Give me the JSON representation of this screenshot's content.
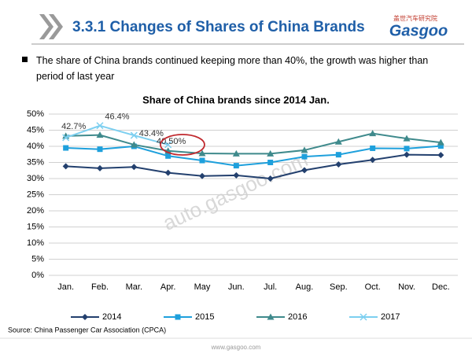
{
  "header": {
    "title": "3.3.1 Changes of Shares of China Brands",
    "logo_cn": "盖世汽车研究院",
    "logo": "Gasgoo"
  },
  "bullet": "The share of China brands continued keeping more than 40%, the growth was higher than period of last year",
  "watermark": "auto.gasgoo.com",
  "source": "Source: China Passenger Car Association (CPCA)",
  "footer": "www.gasgoo.com",
  "chart_data": {
    "type": "line",
    "title": "Share of China brands since 2014 Jan.",
    "categories": [
      "Jan.",
      "Feb.",
      "Mar.",
      "Apr.",
      "May",
      "Jun.",
      "Jul.",
      "Aug.",
      "Sep.",
      "Oct.",
      "Nov.",
      "Dec."
    ],
    "series": [
      {
        "name": "2014",
        "color": "#23406e",
        "marker": "diamond",
        "values": [
          33.8,
          33.2,
          33.6,
          31.8,
          30.8,
          31.0,
          30.0,
          32.6,
          34.4,
          35.8,
          37.4,
          37.3
        ]
      },
      {
        "name": "2015",
        "color": "#1ea0dc",
        "marker": "square",
        "values": [
          39.5,
          39.1,
          40.0,
          37.0,
          35.6,
          34.0,
          35.0,
          36.8,
          37.4,
          39.4,
          39.3,
          40.1
        ]
      },
      {
        "name": "2016",
        "color": "#3f8a8c",
        "marker": "triangle",
        "values": [
          43.2,
          43.5,
          40.5,
          38.6,
          37.8,
          37.7,
          37.7,
          38.8,
          41.4,
          44.0,
          42.4,
          41.2
        ]
      },
      {
        "name": "2017",
        "color": "#7ccff0",
        "marker": "x",
        "values": [
          42.7,
          46.4,
          43.4,
          40.5,
          null,
          null,
          null,
          null,
          null,
          null,
          null,
          null
        ],
        "value_labels": [
          "42.7%",
          "46.4%",
          "43.4%",
          "40.50%",
          null,
          null,
          null,
          null,
          null,
          null,
          null,
          null
        ]
      }
    ],
    "ylim": [
      0,
      50
    ],
    "yticks": [
      {
        "value": 0,
        "label": "0%"
      },
      {
        "value": 5,
        "label": "5%"
      },
      {
        "value": 10,
        "label": "10%"
      },
      {
        "value": 15,
        "label": "15%"
      },
      {
        "value": 20,
        "label": "20%"
      },
      {
        "value": 25,
        "label": "25%"
      },
      {
        "value": 30,
        "label": "30%"
      },
      {
        "value": 35,
        "label": "35%"
      },
      {
        "value": 40,
        "label": "40%"
      },
      {
        "value": 45,
        "label": "45%"
      },
      {
        "value": 50,
        "label": "50%"
      }
    ],
    "grid": true,
    "legend": "bottom"
  }
}
